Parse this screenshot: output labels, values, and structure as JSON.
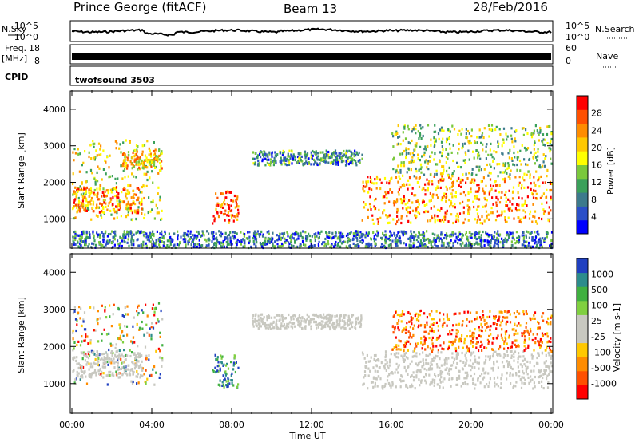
{
  "header": {
    "station": "Prince George (fitACF)",
    "beam": "Beam 13",
    "date": "28/Feb/2016"
  },
  "nsky_panel": {
    "left_label": "N.Sky",
    "right_label": "N.Search",
    "tick_top": "10^5",
    "tick_bottom": "10^0"
  },
  "freq_panel": {
    "left_label": "Freq.",
    "unit": "[MHz]",
    "tick_top": "18",
    "tick_bottom": "8",
    "right_tick_top": "60",
    "right_tick_bottom": "0",
    "right_label": "Nave"
  },
  "cpid_panel": {
    "label": "CPID",
    "program": "twofsound 3503"
  },
  "chart_data": [
    {
      "type": "heatmap",
      "name": "power",
      "ylabel": "Slant Range [km]",
      "ylim": [
        200,
        4500
      ],
      "y_ticks": [
        1000,
        2000,
        3000,
        4000
      ],
      "x_ticks": [
        "00:00",
        "04:00",
        "08:00",
        "12:00",
        "16:00",
        "20:00",
        "00:00"
      ],
      "xlim_hours": [
        0,
        24
      ],
      "colorbar": {
        "label": "Power [dB]",
        "ticks": [
          "4",
          "8",
          "12",
          "16",
          "20",
          "24",
          "28"
        ],
        "colors": [
          "#0000ff",
          "#2a4fc8",
          "#3c7a8c",
          "#3aa05a",
          "#7ac83c",
          "#ffff00",
          "#ffc800",
          "#ff8c00",
          "#ff5000",
          "#ff0000"
        ]
      },
      "echo_regions": [
        {
          "t": [
            0.0,
            4.5
          ],
          "r": [
            1000,
            3200
          ],
          "level": 0.55
        },
        {
          "t": [
            0.0,
            3.5
          ],
          "r": [
            1200,
            1900
          ],
          "level": 0.75
        },
        {
          "t": [
            2.5,
            4.5
          ],
          "r": [
            2400,
            2900
          ],
          "level": 0.65
        },
        {
          "t": [
            7.0,
            8.3
          ],
          "r": [
            900,
            1800
          ],
          "level": 0.85
        },
        {
          "t": [
            9.0,
            14.5
          ],
          "r": [
            2500,
            2900
          ],
          "level": 0.3
        },
        {
          "t": [
            14.5,
            24.0
          ],
          "r": [
            900,
            2200
          ],
          "level": 0.75
        },
        {
          "t": [
            16.0,
            24.0
          ],
          "r": [
            2200,
            3600
          ],
          "level": 0.45
        },
        {
          "t": [
            0.0,
            24.0
          ],
          "r": [
            200,
            700
          ],
          "level": 0.25
        }
      ]
    },
    {
      "type": "heatmap",
      "name": "velocity",
      "ylabel": "Slant Range [km]",
      "ylim": [
        200,
        4500
      ],
      "y_ticks": [
        1000,
        2000,
        3000,
        4000
      ],
      "x_ticks": [
        "00:00",
        "04:00",
        "08:00",
        "12:00",
        "16:00",
        "20:00",
        "00:00"
      ],
      "xlim_hours": [
        0,
        24
      ],
      "xlabel": "Time UT",
      "colorbar": {
        "label": "Velocity [m s-1]",
        "ticks": [
          "1000",
          "500",
          "100",
          "25",
          "-25",
          "-100",
          "-500",
          "-1000"
        ],
        "colors": [
          "#2040c0",
          "#2c8c8c",
          "#40b040",
          "#80d040",
          "#c8c8c0",
          "#c8c8c0",
          "#ffc800",
          "#ff8c00",
          "#ff5000",
          "#ff0000"
        ]
      },
      "echo_regions": [
        {
          "t": [
            0.0,
            4.5
          ],
          "r": [
            1000,
            3200
          ],
          "v": "mixed"
        },
        {
          "t": [
            0.0,
            3.5
          ],
          "r": [
            1200,
            1900
          ],
          "v": "ground"
        },
        {
          "t": [
            7.0,
            8.3
          ],
          "r": [
            900,
            1800
          ],
          "v": "positive"
        },
        {
          "t": [
            9.0,
            14.5
          ],
          "r": [
            2500,
            2900
          ],
          "v": "ground"
        },
        {
          "t": [
            14.5,
            24.0
          ],
          "r": [
            900,
            1900
          ],
          "v": "ground"
        },
        {
          "t": [
            16.0,
            24.0
          ],
          "r": [
            1900,
            3000
          ],
          "v": "negative"
        }
      ]
    }
  ]
}
